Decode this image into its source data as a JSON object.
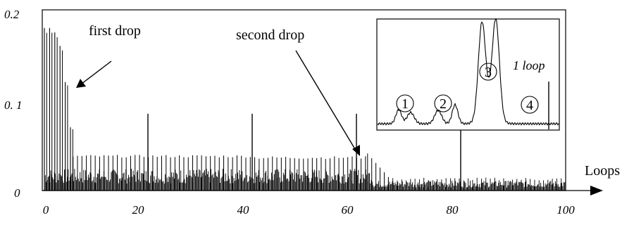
{
  "chart_data": {
    "type": "line",
    "title": "",
    "xlabel": "Loops",
    "ylabel": "",
    "xlim": [
      0,
      100
    ],
    "ylim": [
      0,
      0.2
    ],
    "x_ticks": [
      "0",
      "20",
      "40",
      "60",
      "80",
      "100"
    ],
    "y_ticks": [
      "0",
      "0. 1",
      "0.2"
    ],
    "grid": false,
    "series": [
      {
        "spike_peaks": {
          "first_drop_loops": [
            0,
            1,
            2,
            3,
            4,
            5
          ],
          "first_drop_peaks": [
            0.18,
            0.18,
            0.175,
            0.16,
            0.12,
            0.07
          ],
          "plateau_level_loops_6_to_62": 0.038,
          "tail_level_after_second_drop": 0.012,
          "markers_at_loops": [
            20,
            40,
            60,
            80
          ],
          "marker_peaks": [
            0.085,
            0.085,
            0.085,
            0.085
          ]
        }
      }
    ],
    "annotations": [
      {
        "text": "first drop"
      },
      {
        "text": "second drop"
      }
    ],
    "inset": {
      "peak_labels": [
        "1",
        "2",
        "3",
        "4"
      ],
      "label": "1 loop"
    }
  }
}
